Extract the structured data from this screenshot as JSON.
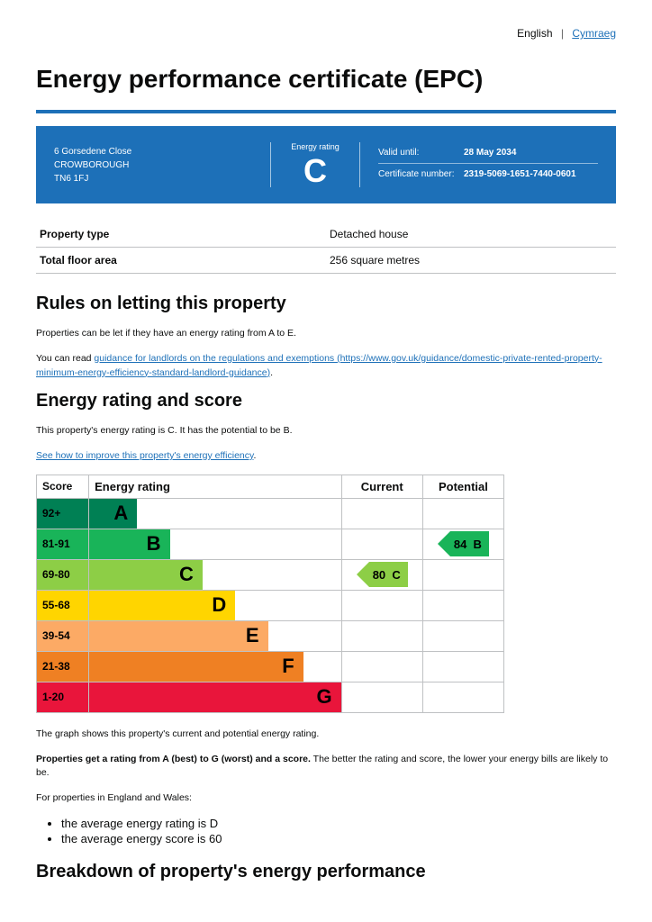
{
  "lang": {
    "english": "English",
    "welsh": "Cymraeg"
  },
  "title": "Energy performance certificate (EPC)",
  "property": {
    "address_line1": "6 Gorsedene Close",
    "address_line2": "CROWBOROUGH",
    "address_line3": "TN6 1FJ",
    "energy_rating_label": "Energy rating",
    "energy_rating_letter": "C",
    "valid_until_label": "Valid until:",
    "valid_until": "28 May 2034",
    "cert_label": "Certificate number:",
    "cert_number": "2319-5069-1651-7440-0601"
  },
  "prop_table": {
    "type_label": "Property type",
    "type_value": "Detached house",
    "area_label": "Total floor area",
    "area_value": "256 square metres"
  },
  "rules": {
    "heading": "Rules on letting this property",
    "p1": "Properties can be let if they have an energy rating from A to E.",
    "p2_prefix": "You can read ",
    "p2_link_text": "guidance for landlords on the regulations and exemptions (https://www.gov.uk/guidance/domestic-private-rented-property-minimum-energy-efficiency-standard-landlord-guidance)",
    "p2_suffix": "."
  },
  "rating_section": {
    "heading": "Energy rating and score",
    "intro": "This property's energy rating is C. It has the potential to be B.",
    "link": "See how to improve this property's energy efficiency"
  },
  "chart": {
    "headers": {
      "score": "Score",
      "rating": "Energy rating",
      "current": "Current",
      "potential": "Potential"
    },
    "bands": [
      {
        "score": "92+",
        "letter": "A",
        "color": "#008054",
        "width_pct": 19
      },
      {
        "score": "81-91",
        "letter": "B",
        "color": "#19b459",
        "width_pct": 32
      },
      {
        "score": "69-80",
        "letter": "C",
        "color": "#8dce46",
        "width_pct": 45
      },
      {
        "score": "55-68",
        "letter": "D",
        "color": "#ffd500",
        "width_pct": 58
      },
      {
        "score": "39-54",
        "letter": "E",
        "color": "#fcaa65",
        "width_pct": 71
      },
      {
        "score": "21-38",
        "letter": "F",
        "color": "#ef8023",
        "width_pct": 85
      },
      {
        "score": "1-20",
        "letter": "G",
        "color": "#e9153b",
        "width_pct": 100
      }
    ],
    "current": {
      "value": 80,
      "letter": "C",
      "band_index": 2,
      "color": "#8dce46"
    },
    "potential": {
      "value": 84,
      "letter": "B",
      "band_index": 1,
      "color": "#19b459"
    }
  },
  "after_chart": {
    "caption": "The graph shows this property's current and potential energy rating.",
    "bold": "Properties get a rating from A (best) to G (worst) and a score.",
    "bold_rest": " The better the rating and score, the lower your energy bills are likely to be.",
    "p3": "For properties in England and Wales:",
    "bullets": [
      "the average energy rating is D",
      "the average energy score is 60"
    ]
  },
  "breakdown_heading": "Breakdown of property's energy performance",
  "link_color": "#1d70b8"
}
